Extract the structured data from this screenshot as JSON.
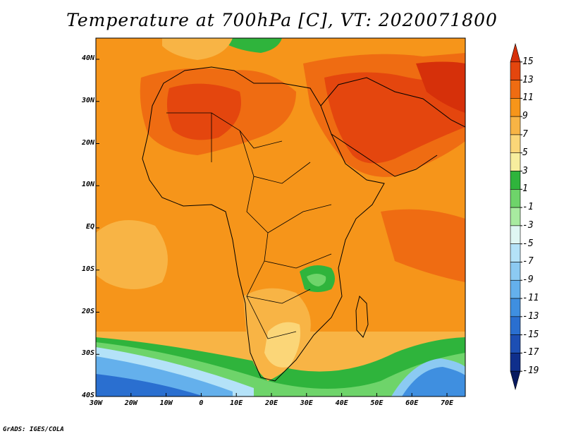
{
  "title": "Temperature at 700hPa [C], VT: 2020071800",
  "credit": "GrADS: IGES/COLA",
  "lat_labels": [
    "40N",
    "30N",
    "20N",
    "10N",
    "EQ",
    "10S",
    "20S",
    "30S",
    "40S"
  ],
  "lon_labels": [
    "30W",
    "20W",
    "10W",
    "0",
    "10E",
    "20E",
    "30E",
    "40E",
    "50E",
    "60E",
    "70E"
  ],
  "colorbar": {
    "labels": [
      "15",
      "13",
      "11",
      "9",
      "7",
      "5",
      "3",
      "1",
      "-1",
      "-3",
      "-5",
      "-7",
      "-9",
      "-11",
      "-13",
      "-15",
      "-17",
      "-19"
    ],
    "colors": [
      "#d6300a",
      "#e4460e",
      "#ef6c12",
      "#f6951a",
      "#f8b445",
      "#fbd678",
      "#f7ee9e",
      "#2fb43c",
      "#6ed46a",
      "#a8eba0",
      "#dff6f3",
      "#b4e2f8",
      "#8ccaf2",
      "#64b0ec",
      "#3f8fe0",
      "#2a6fd0",
      "#1d4fb4",
      "#0f2f8c",
      "#081a60"
    ]
  }
}
